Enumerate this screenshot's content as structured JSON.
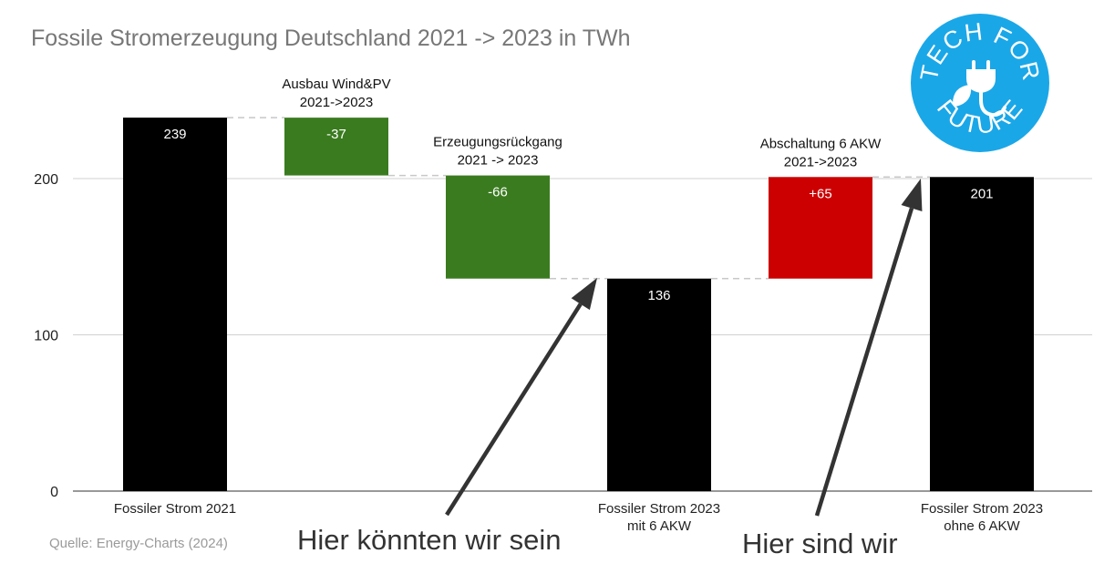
{
  "title": "Fossile Stromerzeugung Deutschland 2021 -> 2023 in TWh",
  "source": "Quelle: Energy-Charts (2024)",
  "annotations": {
    "left_arrow_text": "Hier könnten wir sein",
    "right_arrow_text": "Hier sind wir"
  },
  "logo": {
    "top_text": "TECH FOR",
    "bottom_text": "FUTURE",
    "icon": "plug-leaf-icon",
    "color": "#1aa7e8"
  },
  "colors": {
    "total": "#000000",
    "decrease": "#3a7b1f",
    "increase": "#cc0000"
  },
  "chart_data": {
    "type": "bar",
    "subtype": "waterfall",
    "title": "Fossile Stromerzeugung Deutschland 2021 -> 2023 in TWh",
    "y_ticks": [
      0,
      100,
      200
    ],
    "ylim": [
      0,
      250
    ],
    "grid": true,
    "bars": [
      {
        "label_lines": [
          "Fossiler Strom 2021"
        ],
        "label_position": "bottom",
        "kind": "total",
        "base": 0,
        "value": 239,
        "display": "239"
      },
      {
        "label_lines": [
          "Ausbau Wind&PV",
          "2021->2023"
        ],
        "label_position": "top",
        "kind": "decrease",
        "base": 202,
        "value": 37,
        "display": "-37"
      },
      {
        "label_lines": [
          "Erzeugungsrückgang",
          "2021 -> 2023"
        ],
        "label_position": "top",
        "kind": "decrease",
        "base": 136,
        "value": 66,
        "display": "-66"
      },
      {
        "label_lines": [
          "Fossiler Strom 2023",
          "mit  6 AKW"
        ],
        "label_position": "bottom",
        "kind": "total",
        "base": 0,
        "value": 136,
        "display": "136"
      },
      {
        "label_lines": [
          "Abschaltung 6 AKW",
          "2021->2023"
        ],
        "label_position": "top",
        "kind": "increase",
        "base": 136,
        "value": 65,
        "display": "+65"
      },
      {
        "label_lines": [
          "Fossiler Strom 2023",
          "ohne 6 AKW"
        ],
        "label_position": "bottom",
        "kind": "total",
        "base": 0,
        "value": 201,
        "display": "201"
      }
    ]
  }
}
